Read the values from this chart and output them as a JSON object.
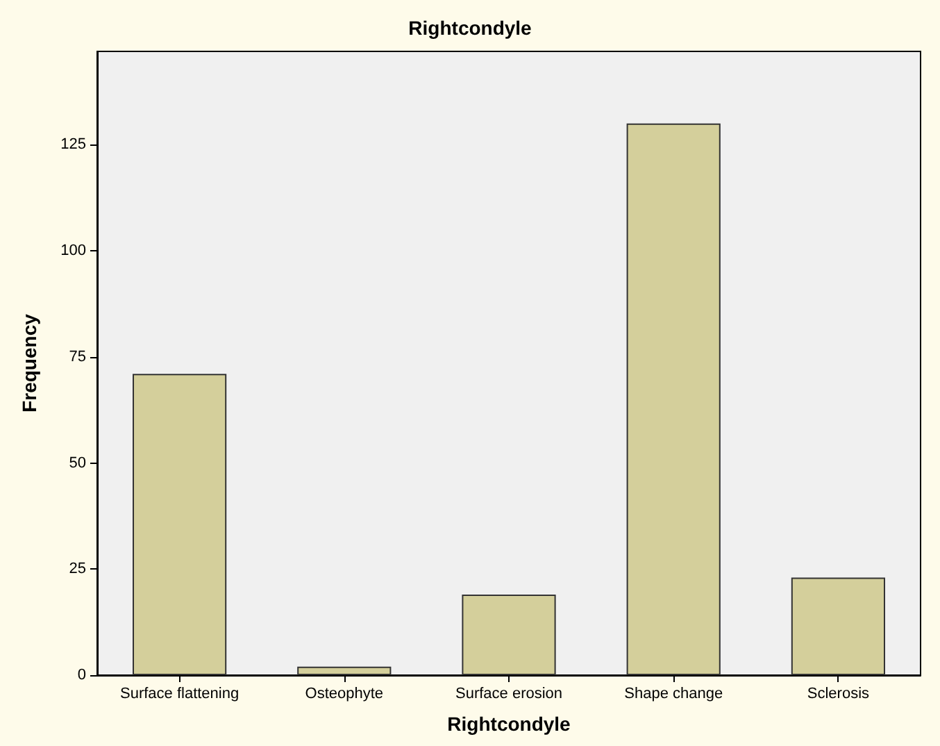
{
  "chart_data": {
    "type": "bar",
    "title": "Rightcondyle",
    "xlabel": "Rightcondyle",
    "ylabel": "Frequency",
    "categories": [
      "Surface flattening",
      "Osteophyte",
      "Surface erosion",
      "Shape change",
      "Sclerosis"
    ],
    "values": [
      71,
      2,
      19,
      130,
      23
    ],
    "color": "#d4cf9b",
    "ylim": [
      0,
      147
    ],
    "yticks": [
      0,
      25,
      50,
      75,
      100,
      125
    ],
    "grid": false
  }
}
